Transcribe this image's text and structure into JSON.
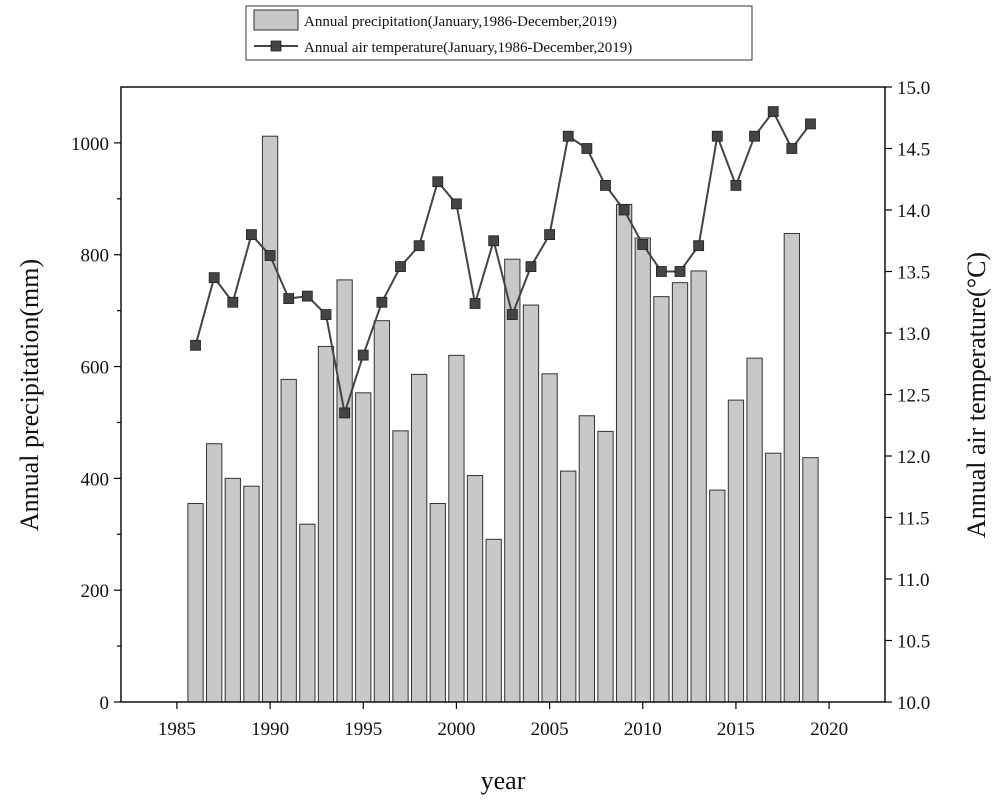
{
  "chart_data": {
    "type": "bar",
    "title": "",
    "xlabel": "year",
    "ylabel": "Annual precipitation(mm)",
    "y2label": "Annual air temperature(°C)",
    "xlim": [
      1982,
      2023
    ],
    "ylim": [
      0,
      1100
    ],
    "y2lim": [
      10.0,
      15.0
    ],
    "grid": false,
    "legend_position": "top-center",
    "x_ticks": [
      1985,
      1990,
      1995,
      2000,
      2005,
      2010,
      2015,
      2020
    ],
    "y_ticks": [
      0,
      200,
      400,
      600,
      800,
      1000
    ],
    "y2_ticks": [
      "10.0",
      "10.5",
      "11.0",
      "11.5",
      "12.0",
      "12.5",
      "13.0",
      "13.5",
      "14.0",
      "14.5",
      "15.0"
    ],
    "categories": [
      1986,
      1987,
      1988,
      1989,
      1990,
      1991,
      1992,
      1993,
      1994,
      1995,
      1996,
      1997,
      1998,
      1999,
      2000,
      2001,
      2002,
      2003,
      2004,
      2005,
      2006,
      2007,
      2008,
      2009,
      2010,
      2011,
      2012,
      2013,
      2014,
      2015,
      2016,
      2017,
      2018,
      2019
    ],
    "series": [
      {
        "name": "Annual precipitation(January,1986-December,2019)",
        "type": "bar",
        "axis": "left",
        "color": "#c8c8c8",
        "values": [
          355,
          462,
          400,
          386,
          1012,
          577,
          318,
          636,
          755,
          553,
          682,
          485,
          586,
          355,
          620,
          405,
          291,
          792,
          710,
          587,
          413,
          512,
          484,
          890,
          830,
          725,
          750,
          771,
          379,
          540,
          615,
          445,
          838,
          437
        ]
      },
      {
        "name": "Annual air temperature(January,1986-December,2019)",
        "type": "line",
        "axis": "right",
        "color": "#444444",
        "values": [
          12.9,
          13.45,
          13.25,
          13.8,
          13.63,
          13.28,
          13.3,
          13.15,
          12.35,
          12.82,
          13.25,
          13.54,
          13.71,
          14.23,
          14.05,
          13.24,
          13.75,
          13.15,
          13.54,
          13.8,
          14.6,
          14.5,
          14.2,
          14.0,
          13.72,
          13.5,
          13.5,
          13.71,
          14.6,
          14.2,
          14.6,
          14.8,
          14.5,
          14.7
        ]
      }
    ]
  }
}
